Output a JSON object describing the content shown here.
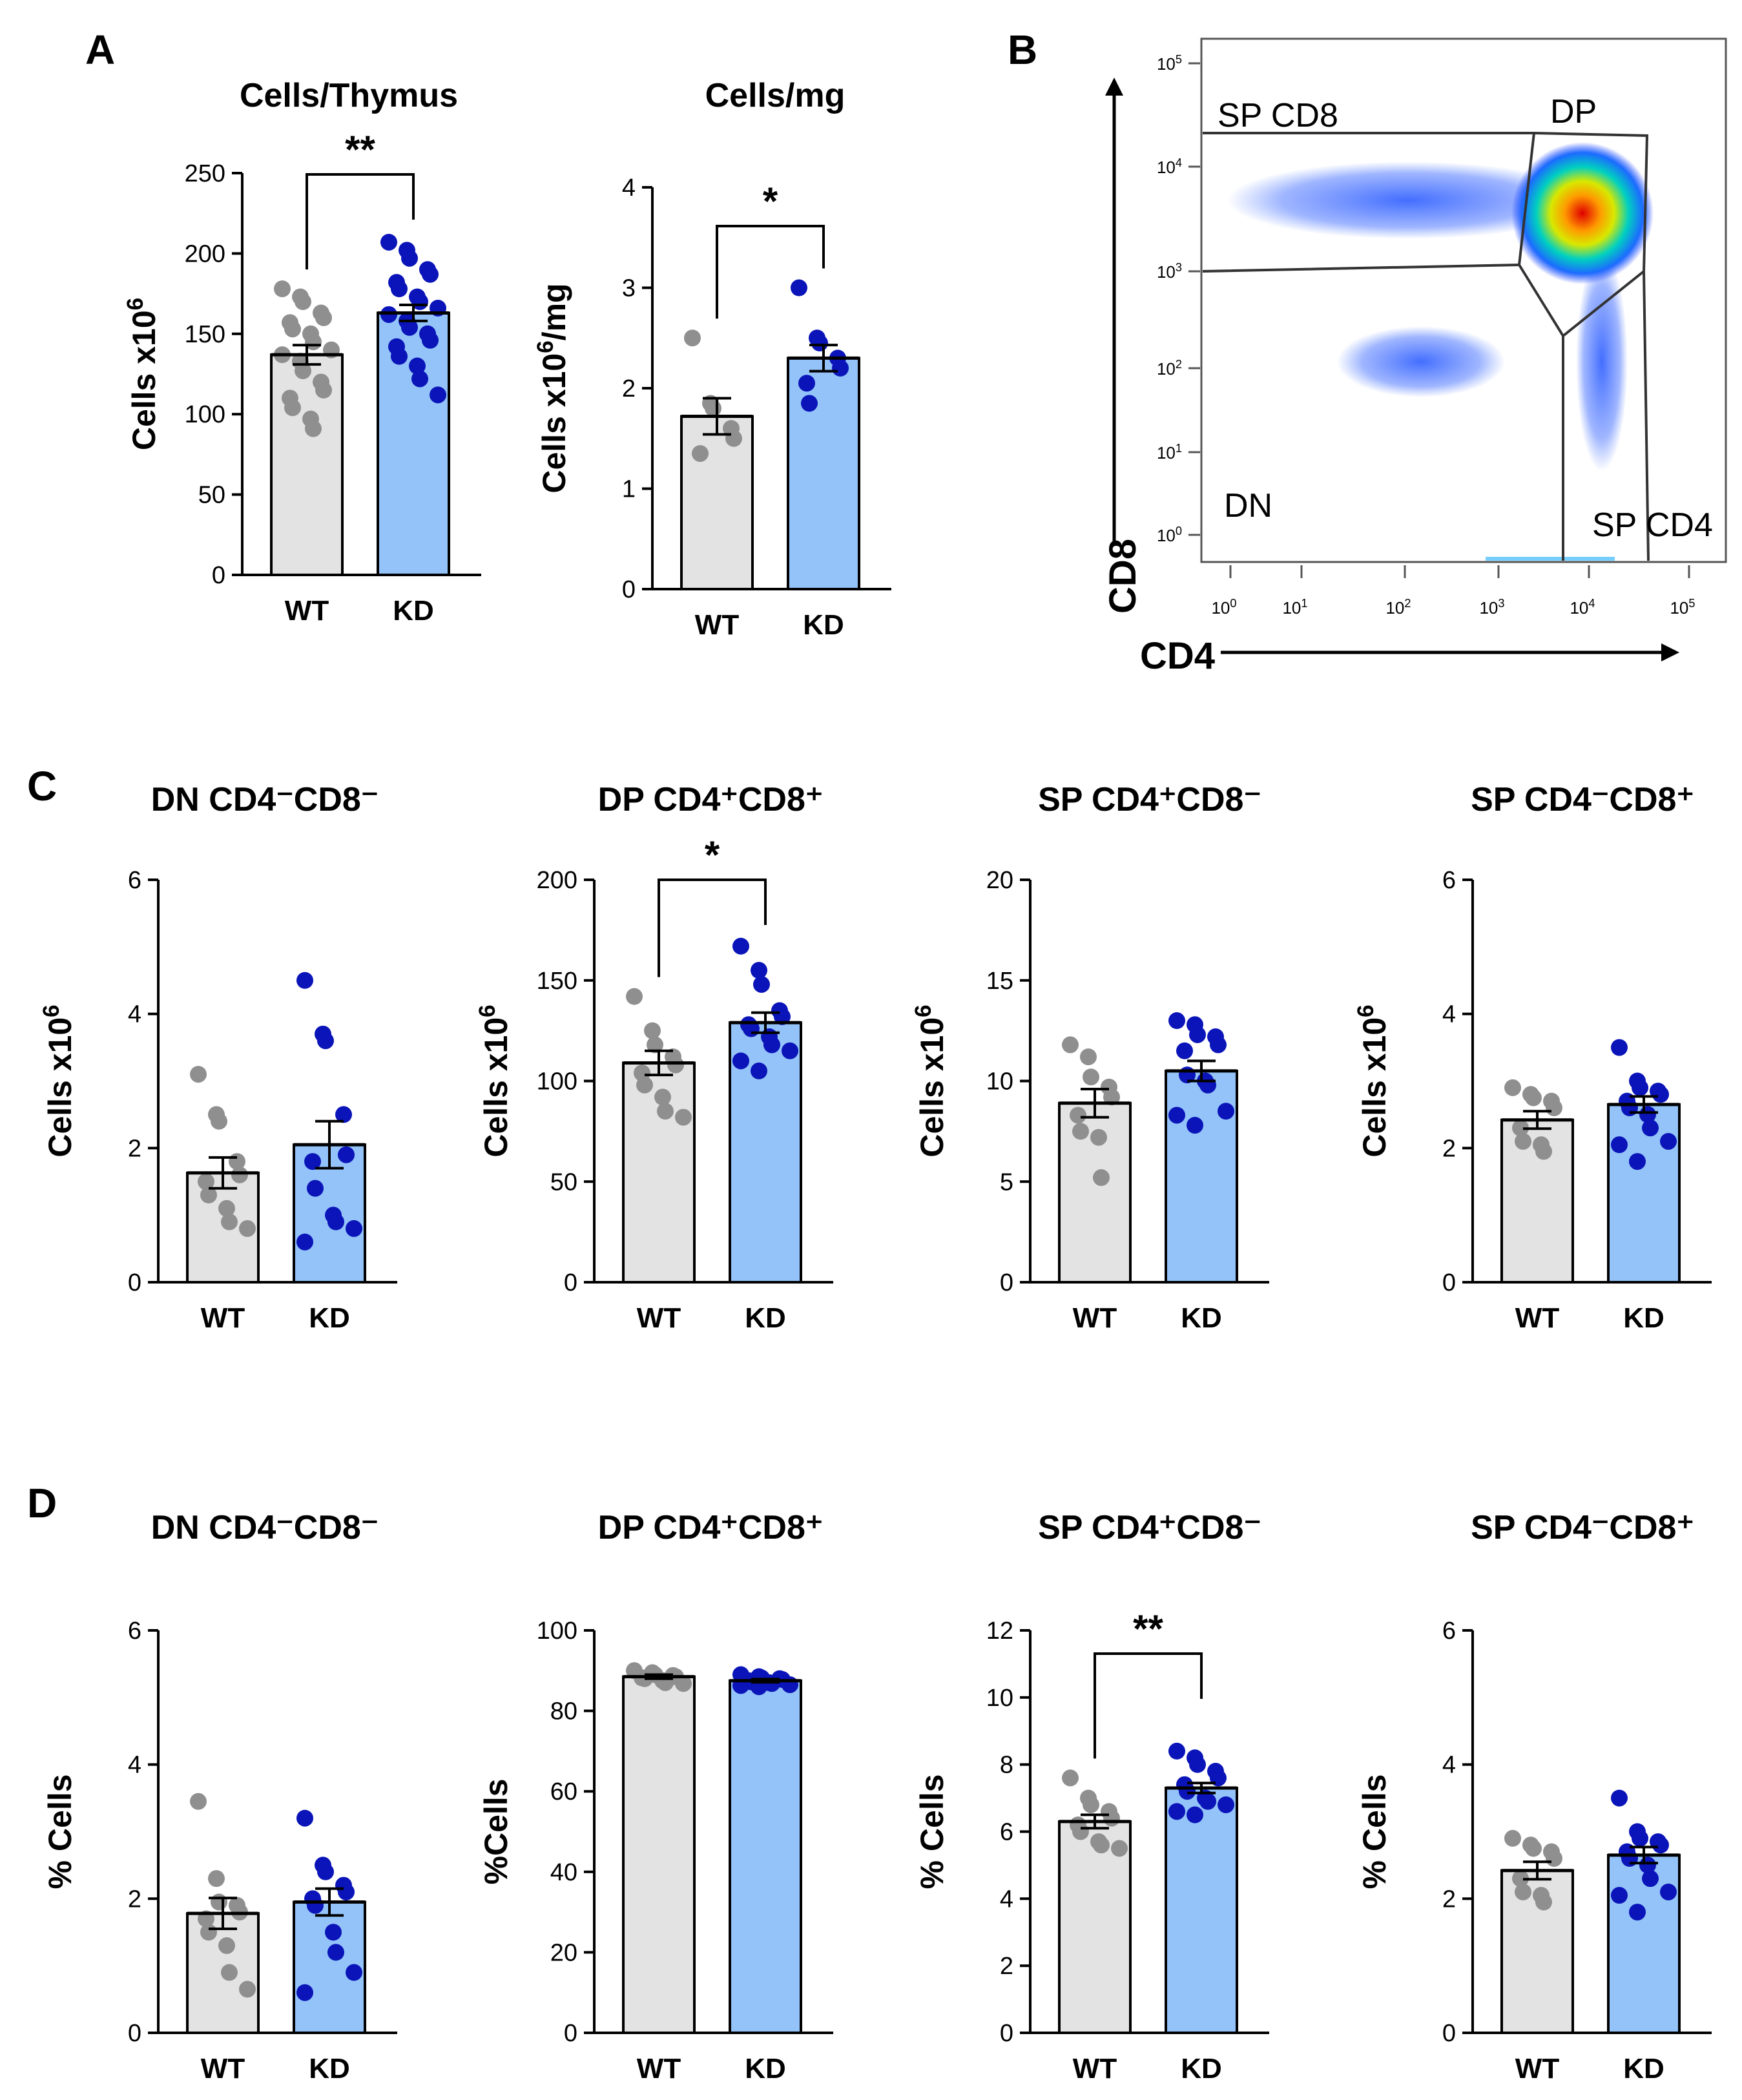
{
  "panels": {
    "a": "A",
    "b": "B",
    "c": "C",
    "d": "D"
  },
  "colors": {
    "wt_fill": "#e3e3e3",
    "wt_dot": "#8f8f8f",
    "kd_fill": "#93c3f9",
    "kd_dot": "#0a14b8",
    "axis": "#000000"
  },
  "flow": {
    "xlabel": "CD4",
    "ylabel": "CD8",
    "ticks": [
      "10^0",
      "10^1",
      "10^2",
      "10^3",
      "10^4",
      "10^5"
    ],
    "gates": {
      "sp_cd8": "SP CD8",
      "dp": "DP",
      "dn": "DN",
      "sp_cd4": "SP CD4"
    }
  },
  "chart_data": [
    {
      "id": "a1",
      "type": "bar",
      "title": "Cells/Thymus",
      "ylabel": "Cells x10^6",
      "ylim": [
        0,
        250
      ],
      "yticks": [
        0,
        50,
        100,
        150,
        200,
        250
      ],
      "categories": [
        "WT",
        "KD"
      ],
      "means": [
        137,
        163
      ],
      "sem": [
        6,
        5
      ],
      "significance": "**",
      "points": [
        [
          178,
          173,
          170,
          163,
          160,
          157,
          153,
          150,
          145,
          140,
          137,
          133,
          127,
          120,
          115,
          110,
          104,
          97,
          91
        ],
        [
          207,
          202,
          197,
          190,
          187,
          182,
          178,
          173,
          170,
          166,
          162,
          158,
          154,
          150,
          146,
          142,
          136,
          130,
          122,
          112
        ]
      ]
    },
    {
      "id": "a2",
      "type": "bar",
      "title": "Cells/mg",
      "ylabel": "Cells x10^6/mg",
      "ylim": [
        0,
        4
      ],
      "yticks": [
        0,
        1,
        2,
        3,
        4
      ],
      "categories": [
        "WT",
        "KD"
      ],
      "means": [
        1.72,
        2.3
      ],
      "sem": [
        0.18,
        0.13
      ],
      "significance": "*",
      "points": [
        [
          2.5,
          1.85,
          1.8,
          1.6,
          1.5,
          1.35
        ],
        [
          3.0,
          2.5,
          2.45,
          2.3,
          2.2,
          2.05,
          1.85
        ]
      ]
    },
    {
      "id": "c1",
      "type": "bar",
      "title": "DN CD4⁻CD8⁻",
      "ylabel": "Cells x10^6",
      "ylim": [
        0,
        6
      ],
      "yticks": [
        0,
        2,
        4,
        6
      ],
      "categories": [
        "WT",
        "KD"
      ],
      "means": [
        1.63,
        2.05
      ],
      "sem": [
        0.23,
        0.35
      ],
      "significance": "",
      "points": [
        [
          3.1,
          2.5,
          2.4,
          1.8,
          1.6,
          1.5,
          1.3,
          1.1,
          0.9,
          0.8
        ],
        [
          4.5,
          3.7,
          3.6,
          2.5,
          1.9,
          1.8,
          1.4,
          1.0,
          0.9,
          0.8,
          0.6
        ]
      ]
    },
    {
      "id": "c2",
      "type": "bar",
      "title": "DP CD4⁺CD8⁺",
      "ylabel": "Cells x10^6",
      "ylim": [
        0,
        200
      ],
      "yticks": [
        0,
        50,
        100,
        150,
        200
      ],
      "categories": [
        "WT",
        "KD"
      ],
      "means": [
        109,
        129
      ],
      "sem": [
        6,
        5
      ],
      "significance": "*",
      "points": [
        [
          142,
          125,
          118,
          112,
          108,
          104,
          98,
          92,
          85,
          82
        ],
        [
          167,
          155,
          148,
          135,
          132,
          128,
          126,
          122,
          118,
          115,
          110,
          105
        ]
      ]
    },
    {
      "id": "c3",
      "type": "bar",
      "title": "SP CD4⁺CD8⁻",
      "ylabel": "Cells x10^6",
      "ylim": [
        0,
        20
      ],
      "yticks": [
        0,
        5,
        10,
        15,
        20
      ],
      "categories": [
        "WT",
        "KD"
      ],
      "means": [
        8.9,
        10.5
      ],
      "sem": [
        0.7,
        0.5
      ],
      "significance": "",
      "points": [
        [
          11.8,
          11.2,
          10.2,
          9.7,
          9.2,
          8.3,
          7.5,
          7.2,
          5.2
        ],
        [
          13.0,
          12.8,
          12.3,
          12.2,
          11.8,
          11.5,
          10.3,
          10.0,
          9.8,
          8.5,
          8.3,
          7.8
        ]
      ]
    },
    {
      "id": "c4",
      "type": "bar",
      "title": "SP CD4⁻CD8⁺",
      "ylabel": "Cells x10^6",
      "ylim": [
        0,
        6
      ],
      "yticks": [
        0,
        2,
        4,
        6
      ],
      "categories": [
        "WT",
        "KD"
      ],
      "means": [
        2.42,
        2.65
      ],
      "sem": [
        0.13,
        0.12
      ],
      "significance": "",
      "points": [
        [
          2.9,
          2.8,
          2.75,
          2.7,
          2.6,
          2.3,
          2.1,
          2.05,
          1.95
        ],
        [
          3.5,
          3.0,
          2.9,
          2.85,
          2.8,
          2.7,
          2.6,
          2.5,
          2.3,
          2.1,
          2.05,
          1.8
        ]
      ]
    },
    {
      "id": "d1",
      "type": "bar",
      "title": "DN CD4⁻CD8⁻",
      "ylabel": "% Cells",
      "ylim": [
        0,
        6
      ],
      "yticks": [
        0,
        2,
        4,
        6
      ],
      "categories": [
        "WT",
        "KD"
      ],
      "means": [
        1.78,
        1.95
      ],
      "sem": [
        0.23,
        0.2
      ],
      "significance": "",
      "points": [
        [
          3.45,
          2.3,
          1.95,
          1.9,
          1.8,
          1.7,
          1.5,
          1.3,
          0.9,
          0.65
        ],
        [
          3.2,
          2.5,
          2.4,
          2.2,
          2.1,
          2.0,
          1.9,
          1.5,
          1.2,
          0.9,
          0.6
        ]
      ]
    },
    {
      "id": "d2",
      "type": "bar",
      "title": "DP CD4⁺CD8⁺",
      "ylabel": "%Cells",
      "ylim": [
        0,
        100
      ],
      "yticks": [
        0,
        20,
        40,
        60,
        80,
        100
      ],
      "categories": [
        "WT",
        "KD"
      ],
      "means": [
        88.5,
        87.5
      ],
      "sem": [
        0.5,
        0.4
      ],
      "significance": "",
      "points": [
        [
          90,
          89.5,
          89,
          88.8,
          88.5,
          88.2,
          88,
          87.5,
          87,
          86.8
        ],
        [
          89,
          88.5,
          88.2,
          88,
          87.8,
          87.5,
          87.2,
          87,
          86.8,
          86.5,
          86.3,
          86
        ]
      ]
    },
    {
      "id": "d3",
      "type": "bar",
      "title": "SP CD4⁺CD8⁻",
      "ylabel": "% Cells",
      "ylim": [
        0,
        12
      ],
      "yticks": [
        0,
        2,
        4,
        6,
        8,
        10,
        12
      ],
      "categories": [
        "WT",
        "KD"
      ],
      "means": [
        6.3,
        7.3
      ],
      "sem": [
        0.2,
        0.15
      ],
      "significance": "**",
      "points": [
        [
          7.6,
          7.0,
          6.8,
          6.6,
          6.4,
          6.2,
          6.0,
          5.7,
          5.6,
          5.5
        ],
        [
          8.4,
          8.2,
          8.0,
          7.8,
          7.6,
          7.4,
          7.2,
          7.0,
          6.9,
          6.8,
          6.6,
          6.5
        ]
      ]
    },
    {
      "id": "d4",
      "type": "bar",
      "title": "SP CD4⁻CD8⁺",
      "ylabel": "% Cells",
      "ylim": [
        0,
        6
      ],
      "yticks": [
        0,
        2,
        4,
        6
      ],
      "categories": [
        "WT",
        "KD"
      ],
      "means": [
        2.42,
        2.65
      ],
      "sem": [
        0.13,
        0.12
      ],
      "significance": "",
      "points": [
        [
          2.9,
          2.8,
          2.75,
          2.7,
          2.6,
          2.3,
          2.1,
          2.05,
          1.95
        ],
        [
          3.5,
          3.0,
          2.9,
          2.85,
          2.8,
          2.7,
          2.6,
          2.5,
          2.3,
          2.1,
          2.05,
          1.8
        ]
      ]
    }
  ]
}
